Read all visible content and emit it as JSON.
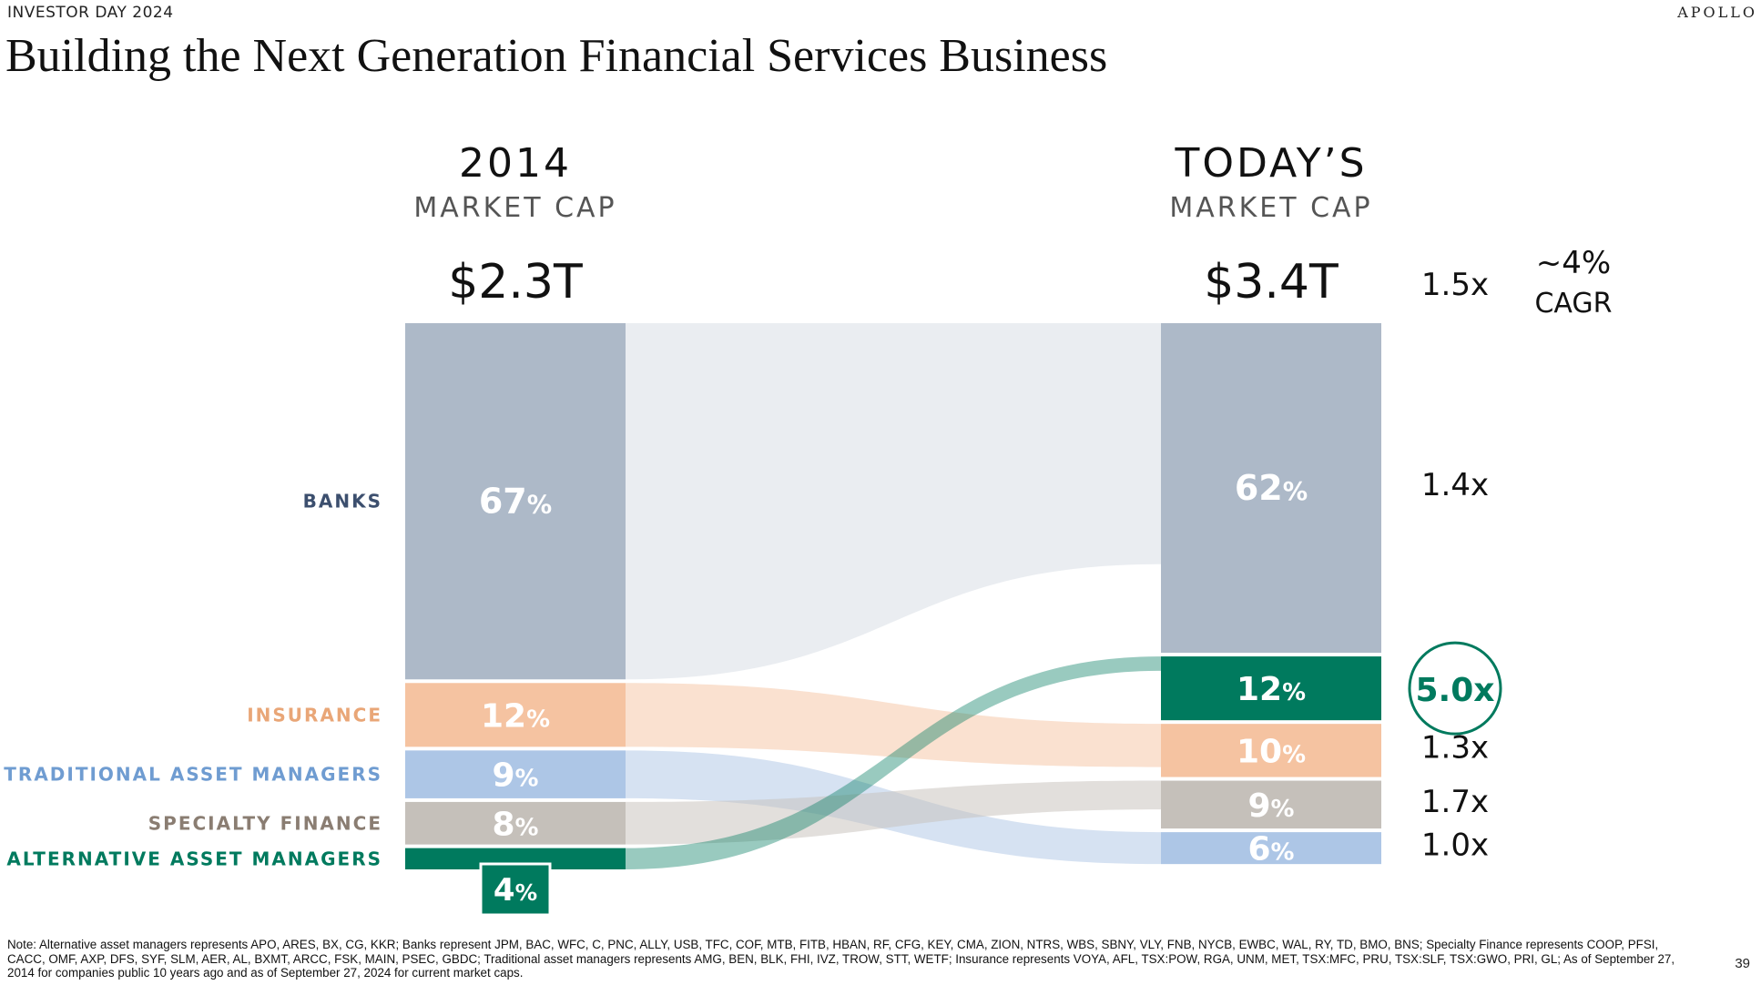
{
  "header": {
    "event": "INVESTOR DAY 2024",
    "logo": "APOLLO",
    "title": "Building the Next Generation Financial Services Business"
  },
  "chart_data": {
    "type": "sankey",
    "columns": [
      {
        "year": "2014",
        "subtitle": "MARKET CAP",
        "total": "$2.3T"
      },
      {
        "year": "TODAY’S",
        "subtitle": "MARKET CAP",
        "total": "$3.4T"
      }
    ],
    "total_multiple": "1.5x",
    "cagr": {
      "value": "~4%",
      "label": "CAGR"
    },
    "series": [
      {
        "name": "BANKS",
        "start_pct": 67,
        "end_pct": 62,
        "start_label": "67%",
        "end_label": "62%",
        "multiple": "1.4x",
        "color": "#adb9c8",
        "label_color": "#3c4f6e",
        "end_rank": 0
      },
      {
        "name": "INSURANCE",
        "start_pct": 12,
        "end_pct": 10,
        "start_label": "12%",
        "end_label": "10%",
        "multiple": "1.3x",
        "color": "#f5c3a1",
        "label_color": "#e9a677",
        "end_rank": 2
      },
      {
        "name": "TRADITIONAL ASSET MANAGERS",
        "start_pct": 9,
        "end_pct": 6,
        "start_label": "9%",
        "end_label": "6%",
        "multiple": "1.0x",
        "color": "#adc6e6",
        "label_color": "#6f9cd1",
        "end_rank": 4
      },
      {
        "name": "SPECIALTY FINANCE",
        "start_pct": 8,
        "end_pct": 9,
        "start_label": "8%",
        "end_label": "9%",
        "multiple": "1.7x",
        "color": "#c5c0ba",
        "label_color": "#8a7d72",
        "end_rank": 3
      },
      {
        "name": "ALTERNATIVE ASSET MANAGERS",
        "start_pct": 4,
        "end_pct": 12,
        "start_label": "4%",
        "end_label": "12%",
        "multiple": "5.0x",
        "color": "#007a5e",
        "label_color": "#007a5e",
        "end_rank": 1,
        "highlight": true
      }
    ]
  },
  "footnote": "Note: Alternative asset managers represents APO, ARES, BX, CG, KKR; Banks represent JPM, BAC, WFC, C, PNC, ALLY, USB, TFC, COF, MTB, FITB, HBAN, RF, CFG, KEY, CMA, ZION, NTRS, WBS, SBNY, VLY, FNB, NYCB, EWBC, WAL, RY, TD, BMO, BNS; Specialty Finance represents COOP, PFSI, CACC, OMF, AXP, DFS, SYF, SLM, AER, AL, BXMT, ARCC, FSK, MAIN, PSEC, GBDC; Traditional asset managers represents AMG, BEN, BLK, FHI, IVZ, TROW, STT, WETF; Insurance represents VOYA, AFL, TSX:POW, RGA, UNM, MET, TSX:MFC, PRU, TSX:SLF, TSX:GWO, PRI, GL; As of September 27, 2014 for companies public 10 years ago and as of September 27, 2024 for current market caps.",
  "page_number": "39"
}
